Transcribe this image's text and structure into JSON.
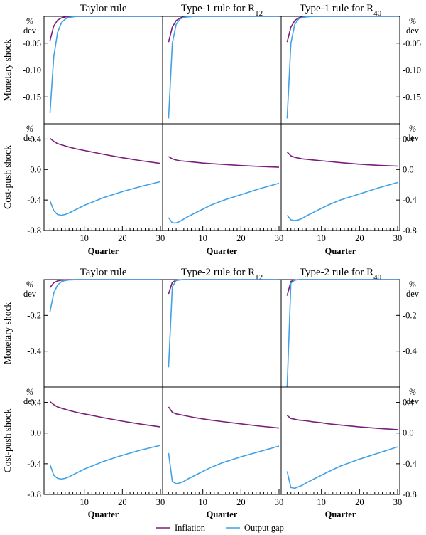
{
  "colors": {
    "inflation": "#7B1E7A",
    "output_gap": "#3FA1E6",
    "frame": "#000000"
  },
  "legend": [
    {
      "key": "inflation",
      "label": "Inflation"
    },
    {
      "key": "output_gap",
      "label": "Output gap"
    }
  ],
  "units": {
    "pct": "%",
    "dev": "dev"
  },
  "row_labels": {
    "monetary": "Monetary shock",
    "costpush": "Cost-push shock"
  },
  "x_axis": {
    "label": "Quarter",
    "ticks": [
      "10",
      "20",
      "30"
    ],
    "tick_values": [
      10,
      20,
      30
    ],
    "range": [
      0,
      30
    ]
  },
  "chart_data": [
    {
      "type": "line",
      "columns": [
        {
          "title": "Taylor rule",
          "subscript": ""
        },
        {
          "title": "Type-1 rule for R",
          "subscript": "12"
        },
        {
          "title": "Type-1 rule for R",
          "subscript": "40"
        }
      ],
      "rows": [
        {
          "name": "Monetary shock",
          "ylim": [
            -0.2,
            0.0
          ],
          "yticks": [
            -0.05,
            -0.1,
            -0.15
          ],
          "ytick_labels": [
            "-0.05",
            "-0.10",
            "-0.15"
          ],
          "series": [
            [
              {
                "name": "Inflation",
                "x": [
                  1,
                  2,
                  3,
                  4,
                  5,
                  6,
                  8,
                  10,
                  30
                ],
                "y": [
                  -0.045,
                  -0.018,
                  -0.007,
                  -0.003,
                  -0.001,
                  -0.0005,
                  0,
                  0,
                  0
                ]
              },
              {
                "name": "Output gap",
                "x": [
                  1,
                  2,
                  3,
                  4,
                  5,
                  6,
                  7,
                  8,
                  10,
                  30
                ],
                "y": [
                  -0.18,
                  -0.075,
                  -0.03,
                  -0.012,
                  -0.005,
                  -0.002,
                  -0.001,
                  0,
                  0,
                  0
                ]
              }
            ],
            [
              {
                "name": "Inflation",
                "x": [
                  1,
                  2,
                  3,
                  4,
                  5,
                  7,
                  30
                ],
                "y": [
                  -0.048,
                  -0.02,
                  -0.008,
                  -0.003,
                  -0.001,
                  0,
                  0
                ]
              },
              {
                "name": "Output gap",
                "x": [
                  1,
                  2,
                  3,
                  4,
                  5,
                  6,
                  8,
                  30
                ],
                "y": [
                  -0.19,
                  -0.05,
                  -0.015,
                  -0.005,
                  -0.002,
                  -0.001,
                  0,
                  0
                ]
              }
            ],
            [
              {
                "name": "Inflation",
                "x": [
                  1,
                  2,
                  3,
                  4,
                  5,
                  7,
                  30
                ],
                "y": [
                  -0.048,
                  -0.02,
                  -0.008,
                  -0.003,
                  -0.001,
                  0,
                  0
                ]
              },
              {
                "name": "Output gap",
                "x": [
                  1,
                  2,
                  3,
                  4,
                  5,
                  6,
                  8,
                  30
                ],
                "y": [
                  -0.19,
                  -0.05,
                  -0.015,
                  -0.005,
                  -0.002,
                  -0.001,
                  0,
                  0
                ]
              }
            ]
          ]
        },
        {
          "name": "Cost-push shock",
          "ylim": [
            -0.8,
            0.6
          ],
          "yticks": [
            0.4,
            0.0,
            -0.4,
            -0.8
          ],
          "ytick_labels": [
            "0.4",
            "0.0",
            "-0.4",
            "-0.8"
          ],
          "series": [
            [
              {
                "name": "Inflation",
                "x": [
                  1,
                  2,
                  3,
                  4,
                  5,
                  6,
                  8,
                  10,
                  12,
                  15,
                  20,
                  25,
                  30
                ],
                "y": [
                  0.41,
                  0.37,
                  0.34,
                  0.325,
                  0.31,
                  0.295,
                  0.27,
                  0.25,
                  0.23,
                  0.2,
                  0.155,
                  0.115,
                  0.08
                ]
              },
              {
                "name": "Output gap",
                "x": [
                  1,
                  2,
                  3,
                  4,
                  5,
                  6,
                  8,
                  10,
                  12,
                  15,
                  20,
                  25,
                  30
                ],
                "y": [
                  -0.41,
                  -0.54,
                  -0.59,
                  -0.6,
                  -0.59,
                  -0.57,
                  -0.52,
                  -0.47,
                  -0.43,
                  -0.37,
                  -0.29,
                  -0.22,
                  -0.16
                ]
              }
            ],
            [
              {
                "name": "Inflation",
                "x": [
                  1,
                  2,
                  3,
                  4,
                  5,
                  6,
                  8,
                  10,
                  12,
                  15,
                  20,
                  25,
                  30
                ],
                "y": [
                  0.17,
                  0.14,
                  0.125,
                  0.115,
                  0.11,
                  0.105,
                  0.095,
                  0.085,
                  0.078,
                  0.068,
                  0.052,
                  0.04,
                  0.03
                ]
              },
              {
                "name": "Output gap",
                "x": [
                  1,
                  2,
                  3,
                  4,
                  5,
                  6,
                  8,
                  10,
                  12,
                  15,
                  20,
                  25,
                  30
                ],
                "y": [
                  -0.63,
                  -0.7,
                  -0.7,
                  -0.68,
                  -0.65,
                  -0.62,
                  -0.57,
                  -0.52,
                  -0.47,
                  -0.41,
                  -0.33,
                  -0.25,
                  -0.18
                ]
              }
            ],
            [
              {
                "name": "Inflation",
                "x": [
                  1,
                  2,
                  3,
                  4,
                  5,
                  6,
                  8,
                  10,
                  12,
                  15,
                  20,
                  25,
                  30
                ],
                "y": [
                  0.23,
                  0.18,
                  0.16,
                  0.15,
                  0.14,
                  0.135,
                  0.125,
                  0.115,
                  0.105,
                  0.09,
                  0.07,
                  0.055,
                  0.045
                ]
              },
              {
                "name": "Output gap",
                "x": [
                  1,
                  2,
                  3,
                  4,
                  5,
                  6,
                  8,
                  10,
                  12,
                  15,
                  20,
                  25,
                  30
                ],
                "y": [
                  -0.6,
                  -0.66,
                  -0.67,
                  -0.66,
                  -0.64,
                  -0.61,
                  -0.56,
                  -0.51,
                  -0.46,
                  -0.4,
                  -0.32,
                  -0.24,
                  -0.17
                ]
              }
            ]
          ]
        }
      ]
    },
    {
      "type": "line",
      "columns": [
        {
          "title": "Taylor rule",
          "subscript": ""
        },
        {
          "title": "Type-2 rule for R",
          "subscript": "12"
        },
        {
          "title": "Type-2 rule for R",
          "subscript": "40"
        }
      ],
      "rows": [
        {
          "name": "Monetary shock",
          "ylim": [
            -0.6,
            0.0
          ],
          "yticks": [
            -0.2,
            -0.4
          ],
          "ytick_labels": [
            "-0.2",
            "-0.4"
          ],
          "series": [
            [
              {
                "name": "Inflation",
                "x": [
                  1,
                  2,
                  3,
                  4,
                  5,
                  6,
                  8,
                  10,
                  30
                ],
                "y": [
                  -0.045,
                  -0.018,
                  -0.007,
                  -0.003,
                  -0.001,
                  -0.0005,
                  0,
                  0,
                  0
                ]
              },
              {
                "name": "Output gap",
                "x": [
                  1,
                  2,
                  3,
                  4,
                  5,
                  6,
                  7,
                  8,
                  10,
                  30
                ],
                "y": [
                  -0.18,
                  -0.075,
                  -0.03,
                  -0.012,
                  -0.005,
                  -0.002,
                  -0.001,
                  0,
                  0,
                  0
                ]
              }
            ],
            [
              {
                "name": "Inflation",
                "x": [
                  1,
                  2,
                  3,
                  4,
                  5,
                  30
                ],
                "y": [
                  -0.08,
                  -0.015,
                  -0.003,
                  -0.001,
                  0,
                  0
                ]
              },
              {
                "name": "Output gap",
                "x": [
                  1,
                  2,
                  3,
                  4,
                  5,
                  30
                ],
                "y": [
                  -0.49,
                  -0.04,
                  -0.005,
                  -0.001,
                  0,
                  0
                ]
              }
            ],
            [
              {
                "name": "Inflation",
                "x": [
                  1,
                  2,
                  3,
                  4,
                  30
                ],
                "y": [
                  -0.09,
                  -0.01,
                  -0.002,
                  0,
                  0
                ]
              },
              {
                "name": "Output gap",
                "x": [
                  1,
                  2,
                  3,
                  4,
                  30
                ],
                "y": [
                  -0.6,
                  -0.02,
                  -0.003,
                  0,
                  0
                ]
              }
            ]
          ]
        },
        {
          "name": "Cost-push shock",
          "ylim": [
            -0.8,
            0.6
          ],
          "yticks": [
            0.4,
            0.0,
            -0.4,
            -0.8
          ],
          "ytick_labels": [
            "0.4",
            "0.0",
            "-0.4",
            "-0.8"
          ],
          "series": [
            [
              {
                "name": "Inflation",
                "x": [
                  1,
                  2,
                  3,
                  4,
                  5,
                  6,
                  8,
                  10,
                  12,
                  15,
                  20,
                  25,
                  30
                ],
                "y": [
                  0.41,
                  0.37,
                  0.34,
                  0.325,
                  0.31,
                  0.295,
                  0.27,
                  0.25,
                  0.23,
                  0.2,
                  0.155,
                  0.115,
                  0.08
                ]
              },
              {
                "name": "Output gap",
                "x": [
                  1,
                  2,
                  3,
                  4,
                  5,
                  6,
                  8,
                  10,
                  12,
                  15,
                  20,
                  25,
                  30
                ],
                "y": [
                  -0.41,
                  -0.55,
                  -0.59,
                  -0.6,
                  -0.59,
                  -0.57,
                  -0.52,
                  -0.47,
                  -0.43,
                  -0.37,
                  -0.29,
                  -0.22,
                  -0.16
                ]
              }
            ],
            [
              {
                "name": "Inflation",
                "x": [
                  1,
                  2,
                  3,
                  4,
                  5,
                  6,
                  8,
                  10,
                  12,
                  15,
                  20,
                  25,
                  30
                ],
                "y": [
                  0.34,
                  0.27,
                  0.25,
                  0.24,
                  0.23,
                  0.22,
                  0.2,
                  0.185,
                  0.17,
                  0.15,
                  0.12,
                  0.09,
                  0.065
                ]
              },
              {
                "name": "Output gap",
                "x": [
                  1,
                  2,
                  3,
                  4,
                  5,
                  6,
                  8,
                  10,
                  12,
                  15,
                  20,
                  25,
                  30
                ],
                "y": [
                  -0.26,
                  -0.63,
                  -0.66,
                  -0.65,
                  -0.63,
                  -0.6,
                  -0.55,
                  -0.5,
                  -0.45,
                  -0.39,
                  -0.31,
                  -0.24,
                  -0.17
                ]
              }
            ],
            [
              {
                "name": "Inflation",
                "x": [
                  1,
                  2,
                  3,
                  4,
                  5,
                  6,
                  8,
                  10,
                  12,
                  15,
                  20,
                  25,
                  30
                ],
                "y": [
                  0.23,
                  0.19,
                  0.18,
                  0.17,
                  0.165,
                  0.16,
                  0.145,
                  0.135,
                  0.12,
                  0.105,
                  0.08,
                  0.06,
                  0.045
                ]
              },
              {
                "name": "Output gap",
                "x": [
                  1,
                  2,
                  3,
                  4,
                  5,
                  6,
                  8,
                  10,
                  12,
                  15,
                  20,
                  25,
                  30
                ],
                "y": [
                  -0.5,
                  -0.71,
                  -0.72,
                  -0.7,
                  -0.68,
                  -0.65,
                  -0.6,
                  -0.55,
                  -0.5,
                  -0.43,
                  -0.34,
                  -0.26,
                  -0.18
                ]
              }
            ]
          ]
        }
      ]
    }
  ]
}
